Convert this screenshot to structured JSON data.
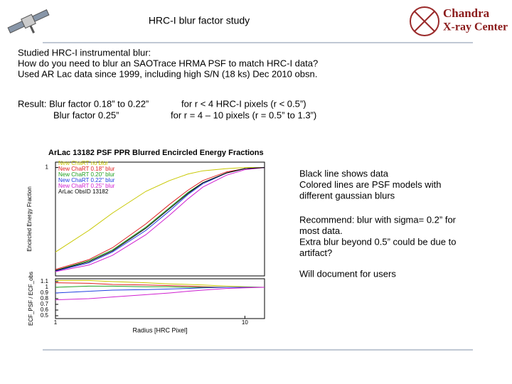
{
  "header": {
    "title": "HRC-I blur factor study",
    "logo": [
      "Chandra",
      "X-ray Center"
    ]
  },
  "intro": [
    "Studied HRC-I instrumental blur:",
    "How do you need to blur an SAOTrace HRMA PSF to match HRC-I data?",
    "Used AR Lac data since 1999, including high S/N (18 ks) Dec 2010 obsn."
  ],
  "result": [
    [
      "Result: Blur factor 0.18” to 0.22”",
      "for r  < 4 HRC-I pixels (r < 0.5”)"
    ],
    [
      "Blur factor 0.25”",
      "for r = 4 – 10 pixels  (r = 0.5”  to 1.3”)"
    ]
  ],
  "notes": [
    [
      "Black line shows data",
      "Colored lines are PSF models with",
      "different gaussian blurs"
    ],
    [
      "Recommend: blur with sigma= 0.2” for",
      "most data.",
      "Extra blur beyond 0.5” could be due to",
      "artifact?"
    ],
    [
      "Will document for users"
    ]
  ],
  "chart_data": {
    "type": "line",
    "title": "ArLac 13182 PSF PPR Blurred Encircled Energy Fractions",
    "ylabel": "Encircled Energy Fraction",
    "ylabel2": "ECF_PSF / ECF_obs",
    "xlabel": "Radius [HRC Pixel]",
    "log_x": true,
    "xlim": [
      1,
      12.7
    ],
    "xticks": [
      1,
      10
    ],
    "ylim": [
      0,
      1.05
    ],
    "yticks": [
      1
    ],
    "y2lim": [
      0.45,
      1.15
    ],
    "y2ticks": [
      1.1,
      1,
      0.9,
      0.8,
      0.7,
      0.6,
      0.5
    ],
    "x": [
      1,
      1.5,
      2,
      3,
      4,
      5,
      6,
      8,
      10,
      12.7
    ],
    "series": [
      {
        "name": "New ChaRT no blur",
        "color": "#c8c800",
        "values": [
          0.22,
          0.42,
          0.58,
          0.78,
          0.88,
          0.94,
          0.97,
          0.99,
          1.0,
          1.0
        ],
        "ratio": [
          1.12,
          1.12,
          1.1,
          1.08,
          1.06,
          1.05,
          1.04,
          1.02,
          1.01,
          1.0
        ]
      },
      {
        "name": "New ChaRT 0.18\" blur",
        "color": "#e02020",
        "values": [
          0.06,
          0.15,
          0.26,
          0.48,
          0.66,
          0.79,
          0.88,
          0.96,
          0.99,
          1.0
        ],
        "ratio": [
          1.08,
          1.07,
          1.05,
          1.04,
          1.03,
          1.02,
          1.01,
          1.0,
          1.0,
          1.0
        ]
      },
      {
        "name": "New ChaRT 0.20\" blur",
        "color": "#20a020",
        "values": [
          0.05,
          0.14,
          0.24,
          0.45,
          0.63,
          0.77,
          0.86,
          0.95,
          0.99,
          1.0
        ],
        "ratio": [
          1.0,
          1.02,
          1.02,
          1.01,
          1.01,
          1.0,
          1.0,
          1.0,
          1.0,
          1.0
        ]
      },
      {
        "name": "New ChaRT 0.22\" blur",
        "color": "#2040e0",
        "values": [
          0.045,
          0.12,
          0.22,
          0.42,
          0.6,
          0.75,
          0.85,
          0.95,
          0.99,
          1.0
        ],
        "ratio": [
          0.9,
          0.93,
          0.95,
          0.96,
          0.97,
          0.98,
          0.99,
          1.0,
          1.0,
          1.0
        ]
      },
      {
        "name": "New ChaRT 0.25\" blur",
        "color": "#d020d0",
        "values": [
          0.04,
          0.1,
          0.19,
          0.38,
          0.56,
          0.71,
          0.82,
          0.93,
          0.98,
          1.0
        ],
        "ratio": [
          0.78,
          0.8,
          0.83,
          0.87,
          0.9,
          0.93,
          0.95,
          0.98,
          0.99,
          1.0
        ]
      },
      {
        "name": "ArLac ObsID 13182",
        "color": "#000000",
        "values": [
          0.05,
          0.13,
          0.23,
          0.44,
          0.62,
          0.76,
          0.86,
          0.95,
          0.99,
          1.0
        ]
      }
    ]
  }
}
